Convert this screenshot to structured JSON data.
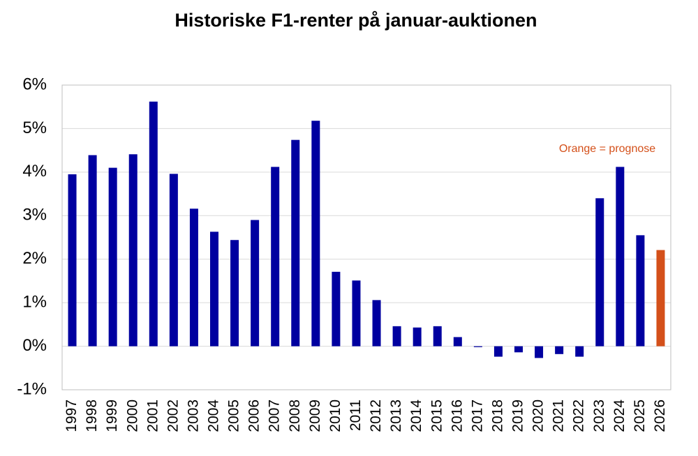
{
  "chart_data": {
    "type": "bar",
    "title": "Historiske F1-renter på januar-auktionen",
    "categories": [
      "1997",
      "1998",
      "1999",
      "2000",
      "2001",
      "2002",
      "2003",
      "2004",
      "2005",
      "2006",
      "2007",
      "2008",
      "2009",
      "2010",
      "2011",
      "2012",
      "2013",
      "2014",
      "2015",
      "2016",
      "2017",
      "2018",
      "2019",
      "2020",
      "2021",
      "2022",
      "2023",
      "2024",
      "2025",
      "2026"
    ],
    "values": [
      3.95,
      4.39,
      4.1,
      4.41,
      5.62,
      3.96,
      3.16,
      2.63,
      2.44,
      2.9,
      4.12,
      4.74,
      5.18,
      1.71,
      1.51,
      1.06,
      0.46,
      0.43,
      0.46,
      0.21,
      -0.02,
      -0.24,
      -0.14,
      -0.27,
      -0.18,
      -0.24,
      3.4,
      4.12,
      2.55,
      2.21
    ],
    "colors": [
      "#0000a0",
      "#0000a0",
      "#0000a0",
      "#0000a0",
      "#0000a0",
      "#0000a0",
      "#0000a0",
      "#0000a0",
      "#0000a0",
      "#0000a0",
      "#0000a0",
      "#0000a0",
      "#0000a0",
      "#0000a0",
      "#0000a0",
      "#0000a0",
      "#0000a0",
      "#0000a0",
      "#0000a0",
      "#0000a0",
      "#0000a0",
      "#0000a0",
      "#0000a0",
      "#0000a0",
      "#0000a0",
      "#0000a0",
      "#0000a0",
      "#0000a0",
      "#0000a0",
      "#d4501a"
    ],
    "annotation": "Orange = prognose",
    "annotation_color": "#d4501a",
    "ylim": [
      -1,
      6
    ],
    "yticks": [
      {
        "value": -1,
        "label": "-1%"
      },
      {
        "value": 0,
        "label": "0%"
      },
      {
        "value": 1,
        "label": "1%"
      },
      {
        "value": 2,
        "label": "2%"
      },
      {
        "value": 3,
        "label": "3%"
      },
      {
        "value": 4,
        "label": "4%"
      },
      {
        "value": 5,
        "label": "5%"
      },
      {
        "value": 6,
        "label": "6%"
      }
    ],
    "grid": true
  }
}
